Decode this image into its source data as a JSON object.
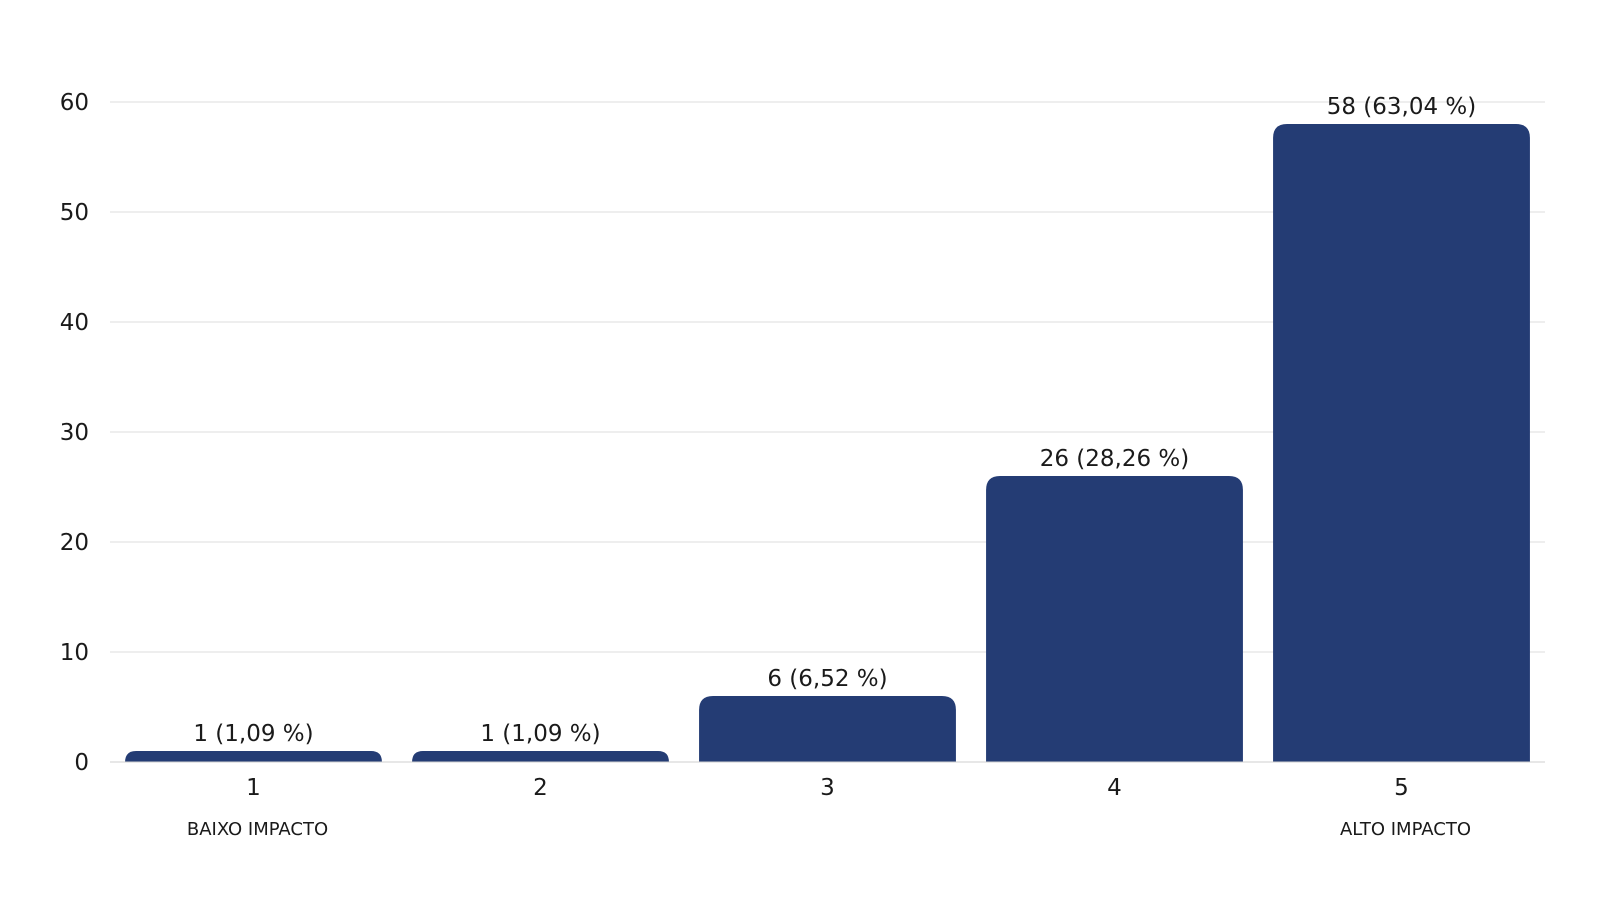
{
  "chart_data": {
    "type": "bar",
    "title": "",
    "xlabel": "",
    "ylabel": "",
    "ylim": [
      0,
      60
    ],
    "yticks": [
      0,
      10,
      20,
      30,
      40,
      50,
      60
    ],
    "grid": true,
    "bar_color": "#243c74",
    "categories": [
      "1",
      "2",
      "3",
      "4",
      "5"
    ],
    "category_sublabels": [
      "BAIXO IMPACTO",
      "",
      "",
      "",
      "ALTO IMPACTO"
    ],
    "values": [
      1,
      1,
      6,
      26,
      58
    ],
    "data_labels": [
      "1 (1,09 %)",
      "1 (1,09 %)",
      "6 (6,52 %)",
      "26 (28,26 %)",
      "58 (63,04 %)"
    ],
    "percentages": [
      1.09,
      1.09,
      6.52,
      28.26,
      63.04
    ]
  }
}
